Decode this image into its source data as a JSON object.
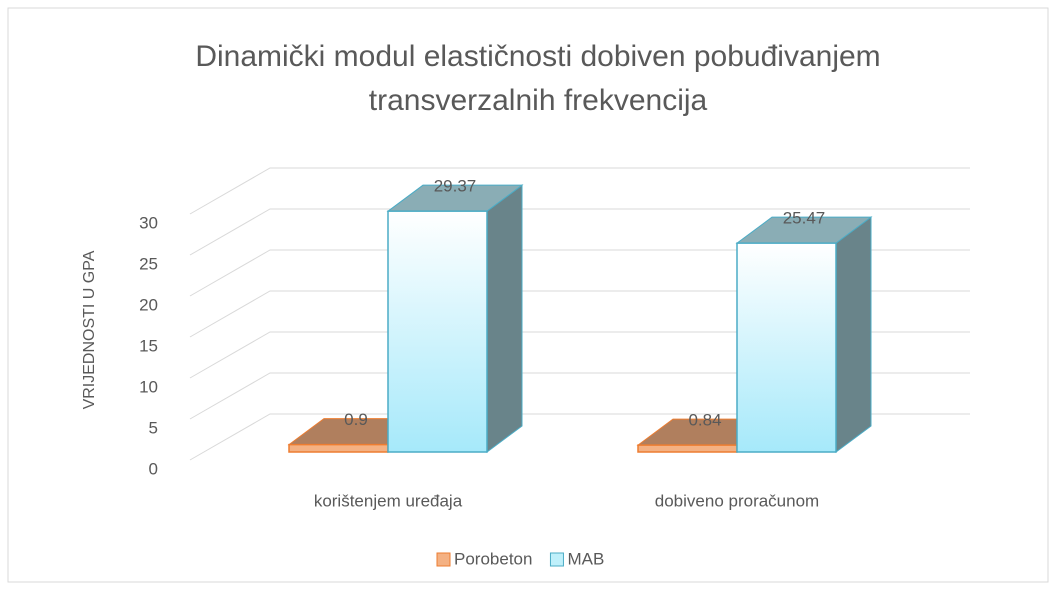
{
  "chart_data": {
    "type": "bar3d",
    "title": "Dinamički modul elastičnosti dobiven pobuđivanjem transverzalnih frekvencija",
    "title_lines": [
      "Dinamički modul elastičnosti dobiven pobuđivanjem",
      "transverzalnih frekvencija"
    ],
    "y_label": "VRIJEDNOSTI U GPA",
    "categories": [
      "korištenjem uređaja",
      "dobiveno proračunom"
    ],
    "series": [
      {
        "name": "Porobeton",
        "color": "#f4b183",
        "values": [
          0.9,
          0.84
        ]
      },
      {
        "name": "MAB",
        "color": "#bff0fb",
        "values": [
          29.37,
          25.47
        ]
      }
    ],
    "ylim": [
      0,
      30
    ],
    "yticks": [
      0,
      5,
      10,
      15,
      20,
      25,
      30
    ],
    "grid": true,
    "legend": "bottom"
  }
}
